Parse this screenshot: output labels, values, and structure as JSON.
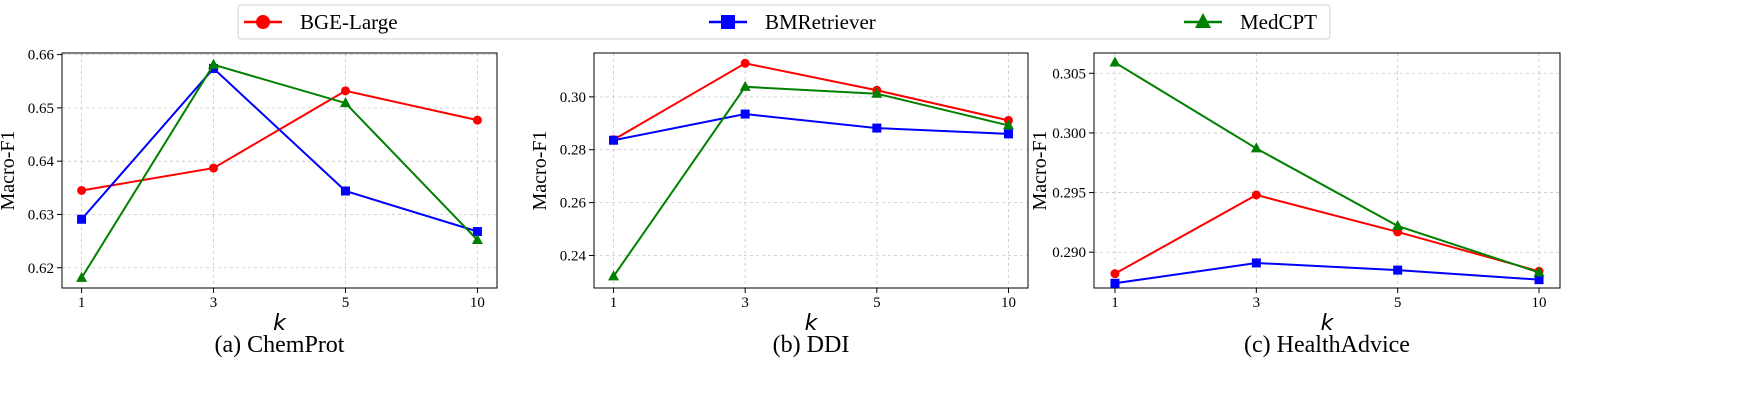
{
  "legend": {
    "placement": "top-center",
    "items": [
      {
        "label": "BGE-Large",
        "color": "#ff0000",
        "marker": "circle"
      },
      {
        "label": "BMRetriever",
        "color": "#0000ff",
        "marker": "square"
      },
      {
        "label": "MedCPT",
        "color": "#008000",
        "marker": "triangle"
      }
    ]
  },
  "chart_data": [
    {
      "type": "line",
      "title": "(a) ChemProt",
      "xlabel": "k",
      "ylabel": "Macro-F1",
      "categories": [
        "1",
        "3",
        "5",
        "10"
      ],
      "ylim": [
        0.6162,
        0.6603
      ],
      "yticks": [
        "0.62",
        "0.63",
        "0.64",
        "0.65",
        "0.66"
      ],
      "grid": true,
      "series": [
        {
          "name": "BGE-Large",
          "color": "#ff0000",
          "marker": "circle",
          "values": [
            0.6345,
            0.6387,
            0.6532,
            0.6477
          ]
        },
        {
          "name": "BMRetriever",
          "color": "#0000ff",
          "marker": "square",
          "values": [
            0.6291,
            0.6574,
            0.6344,
            0.6268
          ]
        },
        {
          "name": "MedCPT",
          "color": "#008000",
          "marker": "triangle",
          "values": [
            0.6181,
            0.6581,
            0.6509,
            0.6252
          ]
        }
      ]
    },
    {
      "type": "line",
      "title": "(b) DDI",
      "xlabel": "k",
      "ylabel": "Macro-F1",
      "categories": [
        "1",
        "3",
        "5",
        "10"
      ],
      "ylim": [
        0.2277,
        0.3166
      ],
      "yticks": [
        "0.24",
        "0.26",
        "0.28",
        "0.30"
      ],
      "grid": true,
      "series": [
        {
          "name": "BGE-Large",
          "color": "#ff0000",
          "marker": "circle",
          "values": [
            0.2838,
            0.3127,
            0.3025,
            0.2911
          ]
        },
        {
          "name": "BMRetriever",
          "color": "#0000ff",
          "marker": "square",
          "values": [
            0.2836,
            0.2935,
            0.2882,
            0.286
          ]
        },
        {
          "name": "MedCPT",
          "color": "#008000",
          "marker": "triangle",
          "values": [
            0.2321,
            0.3038,
            0.3012,
            0.2892
          ]
        }
      ]
    },
    {
      "type": "line",
      "title": "(c) HealthAdvice",
      "xlabel": "k",
      "ylabel": "Macro-F1",
      "categories": [
        "1",
        "3",
        "5",
        "10"
      ],
      "ylim": [
        0.287,
        0.3067
      ],
      "yticks": [
        "0.290",
        "0.295",
        "0.300",
        "0.305"
      ],
      "grid": true,
      "series": [
        {
          "name": "BGE-Large",
          "color": "#ff0000",
          "marker": "circle",
          "values": [
            0.2882,
            0.2948,
            0.2917,
            0.2884
          ]
        },
        {
          "name": "BMRetriever",
          "color": "#0000ff",
          "marker": "square",
          "values": [
            0.2874,
            0.2891,
            0.2885,
            0.2877
          ]
        },
        {
          "name": "MedCPT",
          "color": "#008000",
          "marker": "triangle",
          "values": [
            0.3059,
            0.2987,
            0.2922,
            0.2883
          ]
        }
      ]
    }
  ]
}
